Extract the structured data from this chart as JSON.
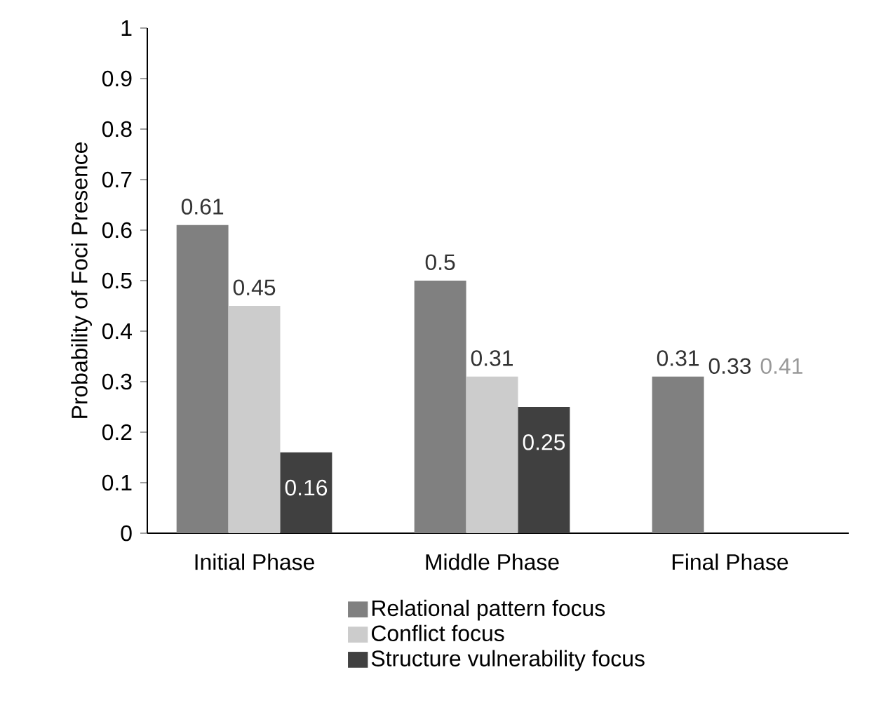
{
  "chart_data": {
    "type": "bar",
    "ylabel": "Probability of Foci Presence",
    "categories": [
      "Initial Phase",
      "Middle Phase",
      "Final Phase"
    ],
    "series": [
      {
        "name": "Relational pattern focus",
        "color": "#808080",
        "values": [
          0.61,
          0.5,
          0.31
        ],
        "value_labels": [
          "0.61",
          "0.5",
          "0.31"
        ]
      },
      {
        "name": "Conflict focus",
        "color": "#cccccc",
        "values": [
          0.45,
          0.31,
          null
        ],
        "value_labels": [
          "0.45",
          "0.31",
          null
        ]
      },
      {
        "name": "Structure vulnerability focus",
        "color": "#404040",
        "values": [
          0.16,
          0.25,
          null
        ],
        "value_labels": [
          "0.16",
          "0.25",
          null
        ]
      }
    ],
    "annotations": [
      "0.33",
      "0.41"
    ],
    "ylim": [
      0,
      1
    ],
    "yticks": [
      0,
      0.1,
      0.2,
      0.3,
      0.4,
      0.5,
      0.6,
      0.7,
      0.8,
      0.9,
      1
    ],
    "grid": false,
    "legend": "bottom"
  }
}
